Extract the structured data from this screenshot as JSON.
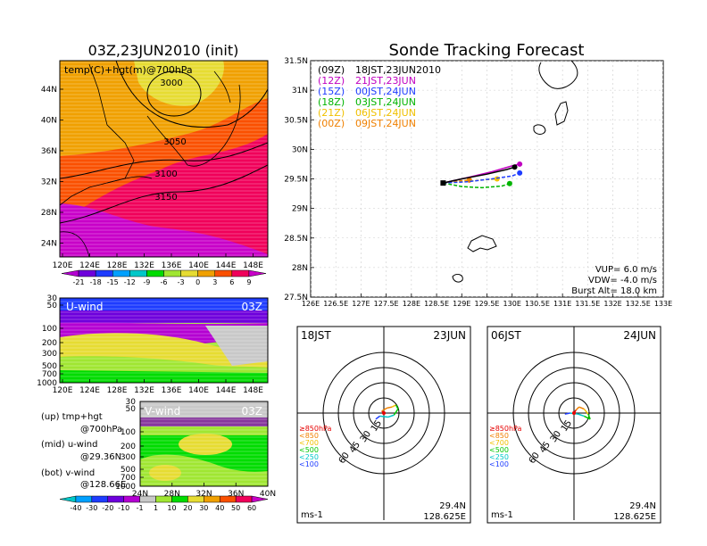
{
  "left_title": "03Z,23JUN2010 (init)",
  "main_title": "Sonde Tracking Forecast",
  "map": {
    "label": "temp(C)+hgt(m)@700hPa",
    "lat_ticks": [
      "44N",
      "40N",
      "36N",
      "32N",
      "28N",
      "24N"
    ],
    "lon_ticks": [
      "120E",
      "124E",
      "128E",
      "132E",
      "136E",
      "140E",
      "144E",
      "148E"
    ],
    "contours": [
      "3000",
      "3050",
      "3100",
      "3150"
    ]
  },
  "temp_colorbar": {
    "labels": [
      "-21",
      "-18",
      "-15",
      "-12",
      "-9",
      "-6",
      "-3",
      "0",
      "3",
      "6",
      "9"
    ],
    "colors": [
      "#b400d2",
      "#6e00dc",
      "#1e3cff",
      "#00a0ff",
      "#00c8c8",
      "#00dc00",
      "#a0e632",
      "#e6dc32",
      "#f0a000",
      "#fa5000",
      "#f0005a",
      "#c800c8"
    ]
  },
  "uwind": {
    "label": "U-wind",
    "time": "03Z",
    "y_ticks": [
      "30",
      "50",
      "100",
      "200",
      "300",
      "500",
      "700",
      "1000"
    ],
    "x_ticks": [
      "120E",
      "124E",
      "128E",
      "132E",
      "136E",
      "140E",
      "144E",
      "148E"
    ]
  },
  "vwind": {
    "label": "V-wind",
    "time": "03Z",
    "y_ticks": [
      "30",
      "50",
      "100",
      "200",
      "300",
      "500",
      "700",
      "1000"
    ],
    "x_ticks": [
      "24N",
      "28N",
      "32N",
      "36N",
      "40N"
    ]
  },
  "notes": [
    {
      "a": "(up)  tmp+hgt",
      "b": "@700hPa"
    },
    {
      "a": "(mid)  u-wind",
      "b": "@29.36N"
    },
    {
      "a": "(bot)  v-wind",
      "b": "@128.66E"
    }
  ],
  "wind_colorbar": {
    "labels": [
      "-40",
      "-30",
      "-20",
      "-10",
      "-1",
      "1",
      "10",
      "20",
      "30",
      "40",
      "50",
      "60"
    ],
    "colors": [
      "#00c8c8",
      "#00a0ff",
      "#1e3cff",
      "#6e00dc",
      "#b400d2",
      "#c8c8c8",
      "#a0e632",
      "#00dc00",
      "#e6dc32",
      "#f0a000",
      "#fa5000",
      "#f0005a",
      "#c800c8"
    ]
  },
  "track": {
    "lat_ticks": [
      "31.5N",
      "31N",
      "30.5N",
      "30N",
      "29.5N",
      "29N",
      "28.5N",
      "28N",
      "27.5N"
    ],
    "lon_ticks": [
      "126E",
      "126.5E",
      "127E",
      "127.5E",
      "128E",
      "128.5E",
      "129E",
      "129.5E",
      "130E",
      "130.5E",
      "131E",
      "131.5E",
      "132E",
      "132.5E",
      "133E"
    ],
    "legend": [
      {
        "t": "(09Z)",
        "d": "18JST,23JUN2010",
        "color": "#000000"
      },
      {
        "t": "(12Z)",
        "d": "21JST,23JUN",
        "color": "#c000c0"
      },
      {
        "t": "(15Z)",
        "d": "00JST,24JUN",
        "color": "#1e3cff"
      },
      {
        "t": "(18Z)",
        "d": "03JST,24JUN",
        "color": "#00b400"
      },
      {
        "t": "(21Z)",
        "d": "06JST,24JUN",
        "color": "#f0c000"
      },
      {
        "t": "(00Z)",
        "d": "09JST,24JUN",
        "color": "#f08000"
      }
    ],
    "vup": "VUP=   6.0  m/s",
    "vdw": "VDW=  -4.0  m/s",
    "burst": "Burst Alt=  18.0  km"
  },
  "chart_data": [
    {
      "type": "line",
      "title": "Sonde Tracking Forecast",
      "xlim": [
        126,
        133
      ],
      "ylim": [
        27.5,
        31.5
      ],
      "series": [
        {
          "name": "(09Z)",
          "color": "#000000",
          "style": "solid",
          "x": [
            128.63,
            129.0,
            129.5,
            129.9,
            130.05
          ],
          "y": [
            29.43,
            29.5,
            29.58,
            29.66,
            29.7
          ]
        },
        {
          "name": "(12Z)",
          "color": "#c000c0",
          "style": "solid",
          "x": [
            128.63,
            129.1,
            129.6,
            130.0,
            130.15
          ],
          "y": [
            29.43,
            29.52,
            29.62,
            29.72,
            29.75
          ]
        },
        {
          "name": "(15Z)",
          "color": "#1e3cff",
          "style": "dashed",
          "x": [
            128.63,
            129.1,
            129.6,
            130.0,
            130.15
          ],
          "y": [
            29.43,
            29.45,
            29.5,
            29.55,
            29.6
          ]
        },
        {
          "name": "(18Z)",
          "color": "#00b400",
          "style": "dashed",
          "x": [
            128.63,
            129.0,
            129.4,
            129.8,
            129.95
          ],
          "y": [
            29.43,
            29.37,
            29.35,
            29.38,
            29.42
          ]
        },
        {
          "name": "(21Z)",
          "color": "#f0c000",
          "style": "dashed",
          "x": [
            128.63,
            129.0,
            129.4,
            129.7
          ],
          "y": [
            29.43,
            29.45,
            29.48,
            29.5
          ]
        },
        {
          "name": "(00Z)",
          "color": "#f08000",
          "style": "dashed",
          "x": [
            128.63,
            128.9,
            129.15
          ],
          "y": [
            29.43,
            29.46,
            29.48
          ]
        }
      ]
    },
    {
      "type": "polar",
      "title": "18JST 23JUN",
      "rings": [
        15,
        30,
        45,
        60
      ],
      "unit": "ms-1",
      "lat": "29.4N",
      "lon": "128.625E",
      "levels": [
        "≥850hPa",
        "<850",
        "<700",
        "<500",
        "<250",
        "<100"
      ],
      "level_colors": [
        "#e60000",
        "#f08000",
        "#f0c000",
        "#00c800",
        "#00c8c8",
        "#1e3cff"
      ],
      "points": [
        [
          0,
          0
        ],
        [
          -2,
          2
        ],
        [
          3,
          5
        ],
        [
          8,
          6
        ],
        [
          12,
          8
        ],
        [
          14,
          4
        ],
        [
          10,
          -2
        ],
        [
          4,
          -4
        ],
        [
          -4,
          -3
        ],
        [
          -8,
          -6
        ]
      ]
    },
    {
      "type": "polar",
      "title": "06JST 24JUN",
      "rings": [
        15,
        30,
        45,
        60
      ],
      "unit": "ms-1",
      "lat": "29.4N",
      "lon": "128.625E",
      "levels": [
        "≥850hPa",
        "<850",
        "<700",
        "<500",
        "<250",
        "<100"
      ],
      "level_colors": [
        "#e60000",
        "#f08000",
        "#f0c000",
        "#00c800",
        "#00c8c8",
        "#1e3cff"
      ],
      "points": [
        [
          0,
          0
        ],
        [
          2,
          3
        ],
        [
          5,
          6
        ],
        [
          10,
          4
        ],
        [
          14,
          -1
        ],
        [
          16,
          -6
        ],
        [
          10,
          -3
        ],
        [
          4,
          -1
        ],
        [
          -4,
          0
        ],
        [
          -9,
          -1
        ]
      ]
    }
  ],
  "polar1": {
    "left": "18JST",
    "right": "23JUN",
    "unit": "ms-1",
    "lat": "29.4N",
    "lon": "128.625E",
    "rings": [
      "15",
      "30",
      "45",
      "60"
    ],
    "levels": [
      "≥850hPa",
      "<850",
      "<700",
      "<500",
      "<250",
      "<100"
    ]
  },
  "polar2": {
    "left": "06JST",
    "right": "24JUN",
    "unit": "ms-1",
    "lat": "29.4N",
    "lon": "128.625E",
    "rings": [
      "15",
      "30",
      "45",
      "60"
    ],
    "levels": [
      "≥850hPa",
      "<850",
      "<700",
      "<500",
      "<250",
      "<100"
    ]
  }
}
